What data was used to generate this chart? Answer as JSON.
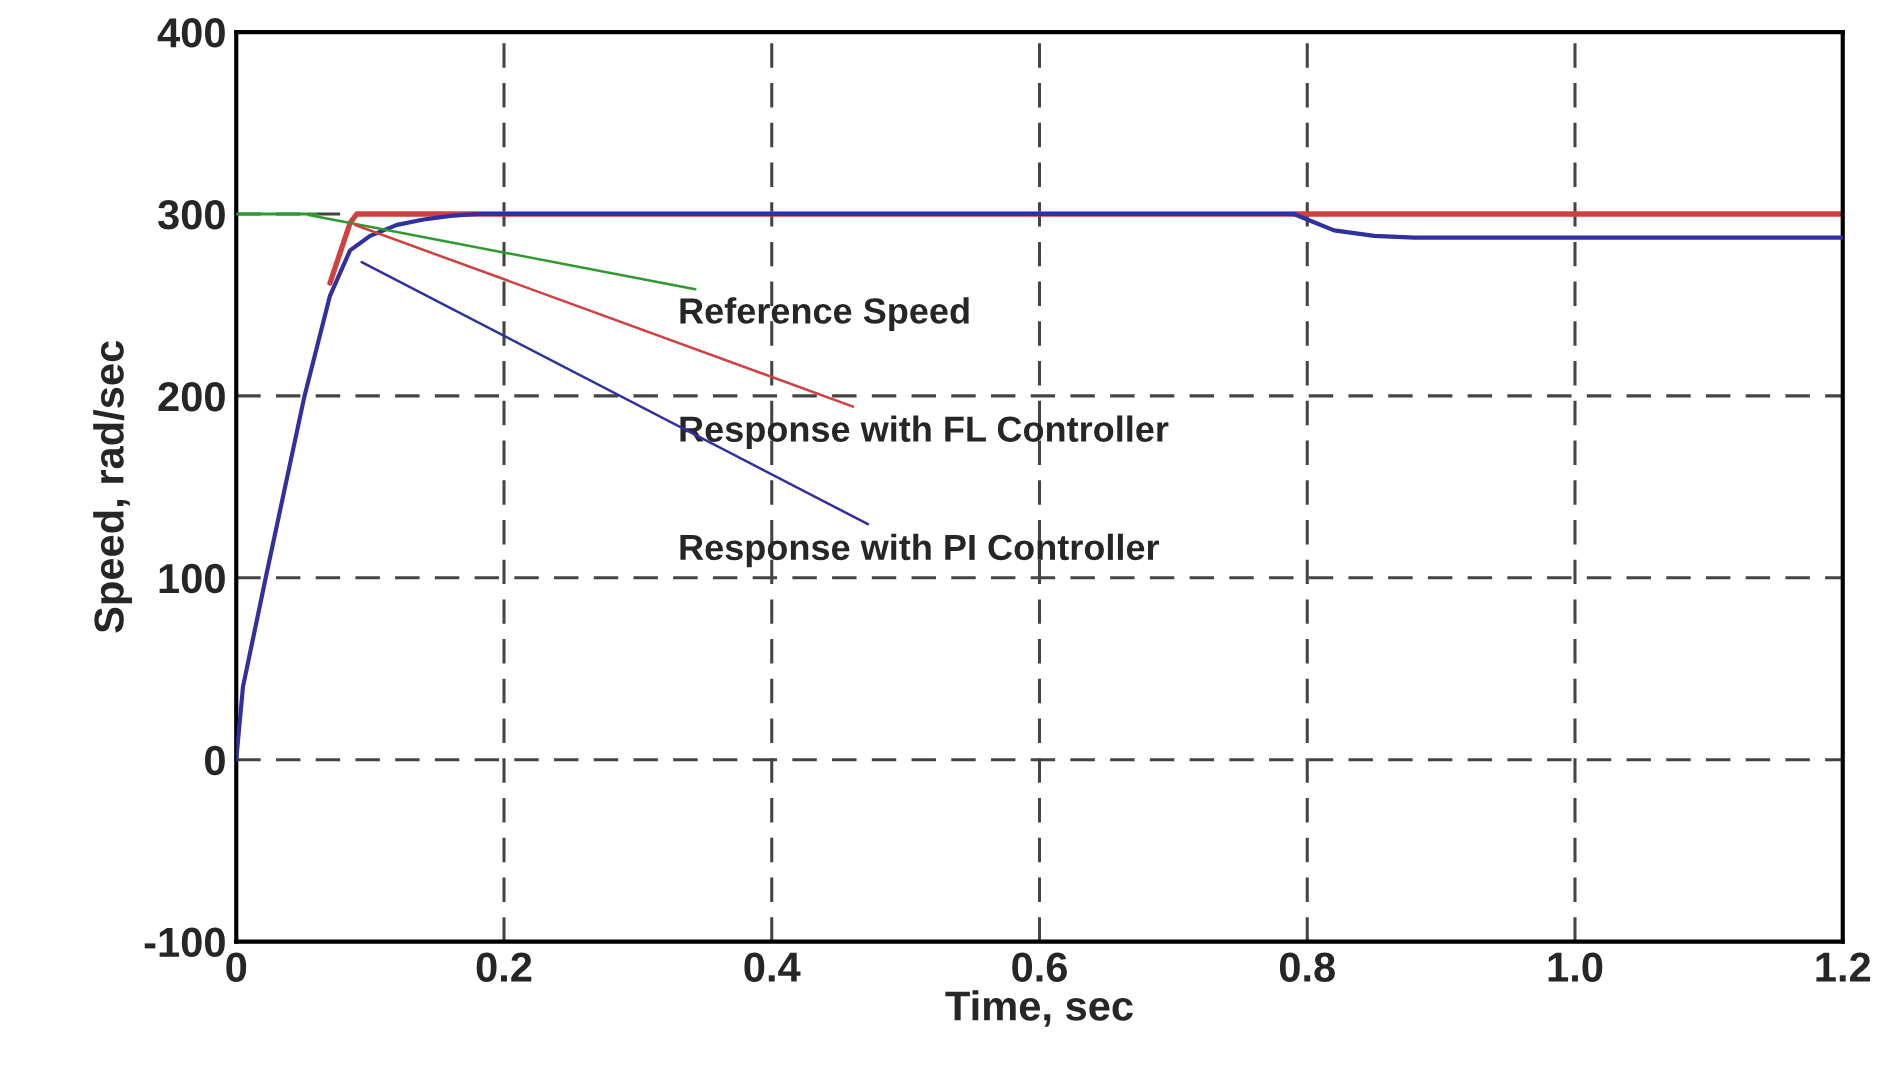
{
  "chart_data": {
    "type": "line",
    "xlabel": "Time, sec",
    "ylabel": "Speed, rad/sec",
    "xlim": [
      0,
      1.2
    ],
    "ylim": [
      -100,
      400
    ],
    "xticks": [
      0,
      0.2,
      0.4,
      0.6,
      0.8,
      {
        "value": 1.0,
        "label": "1.0"
      },
      1.2
    ],
    "yticks": [
      -100,
      0,
      100,
      200,
      300,
      400
    ],
    "grid": true,
    "series": [
      {
        "color": "#2e9a2e",
        "x": [
          0,
          0.06
        ],
        "values": [
          300,
          300
        ]
      },
      {
        "color": "#d04040",
        "x": [
          0.07,
          0.085,
          0.09,
          1.2
        ],
        "values": [
          262,
          295,
          300,
          300
        ]
      },
      {
        "color": "#3030a0",
        "x": [
          0,
          0.005,
          0.022,
          0.051,
          0.07,
          0.085,
          0.1,
          0.12,
          0.14,
          0.16,
          0.18,
          0.2,
          0.79,
          0.8,
          0.82,
          0.85,
          0.88,
          1.2
        ],
        "values": [
          0,
          40,
          100,
          200,
          255,
          280,
          288,
          294,
          297,
          299,
          300,
          300,
          300,
          297,
          291,
          288,
          287,
          287
        ]
      }
    ],
    "annotations": [
      {
        "text": "Reference Speed",
        "x": 0.05,
        "y": 300
      },
      {
        "text": "Response with FL Controller",
        "x": 0.085,
        "y": 295
      },
      {
        "text": "Response with PI Controller",
        "x": 0.09,
        "y": 275
      }
    ]
  }
}
